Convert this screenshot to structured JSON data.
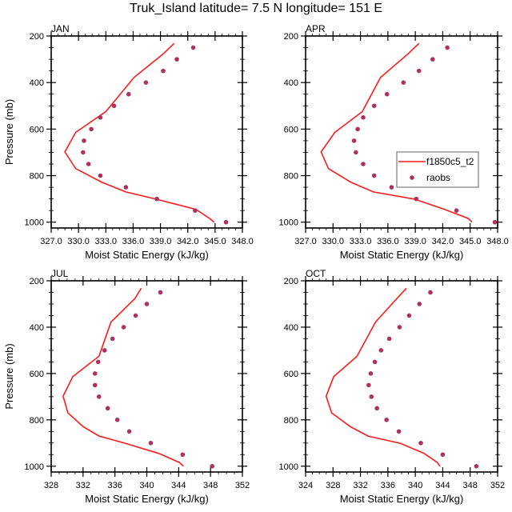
{
  "title": "Truk_Island  latitude= 7.5 N longitude= 151 E",
  "colors": {
    "model_line": "#ff1a1a",
    "raobs_marker": "#b03060",
    "frame": "#000000",
    "legend_border": "#666666"
  },
  "legend": [
    {
      "label": "f1850c5_t2",
      "kind": "line"
    },
    {
      "label": "raobs",
      "kind": "marker"
    }
  ],
  "chart_data": [
    {
      "type": "line",
      "panel": "JAN",
      "title": "JAN",
      "xlabel": "Moist Static Energy (kJ/kg)",
      "ylabel": "Pressure (mb)",
      "xlim": [
        327,
        348
      ],
      "ylim": [
        200,
        1025
      ],
      "y_reversed": true,
      "xticks": [
        327,
        330,
        333,
        336,
        339,
        342,
        345,
        348
      ],
      "xtick_labels": [
        "327.0",
        "330.0",
        "333.0",
        "336.0",
        "339.0",
        "342.0",
        "345.0",
        "348.0"
      ],
      "yticks": [
        200,
        400,
        600,
        800,
        1000
      ],
      "ytick_labels": [
        "200",
        "400",
        "600",
        "800",
        "1000"
      ],
      "legend_shown": false,
      "series": [
        {
          "name": "f1850c5_t2",
          "style": "line",
          "pressure": [
            232,
            277,
            378,
            525,
            614,
            698,
            770,
            829,
            870,
            901,
            945,
            984,
            1000
          ],
          "mse": [
            340.5,
            339.3,
            336.1,
            333.0,
            329.7,
            328.5,
            329.7,
            332.6,
            335.2,
            338.5,
            342.9,
            344.4,
            344.9
          ]
        },
        {
          "name": "raobs",
          "style": "marker",
          "pressure": [
            250,
            300,
            350,
            400,
            450,
            500,
            550,
            600,
            650,
            700,
            750,
            800,
            850,
            900,
            950,
            1000
          ],
          "mse": [
            342.6,
            340.8,
            339.3,
            337.4,
            335.5,
            333.9,
            332.4,
            331.4,
            330.6,
            330.5,
            331.1,
            332.4,
            335.2,
            338.6,
            342.8,
            346.2
          ]
        }
      ]
    },
    {
      "type": "line",
      "panel": "APR",
      "title": "APR",
      "xlabel": "Moist Static Energy (kJ/kg)",
      "ylabel": "",
      "xlim": [
        327,
        348
      ],
      "ylim": [
        200,
        1025
      ],
      "y_reversed": true,
      "xticks": [
        327,
        330,
        333,
        336,
        339,
        342,
        345,
        348
      ],
      "xtick_labels": [
        "327.0",
        "330.0",
        "333.0",
        "336.0",
        "339.0",
        "342.0",
        "345.0",
        "348.0"
      ],
      "yticks": [
        200,
        400,
        600,
        800,
        1000
      ],
      "ytick_labels": [
        "200",
        "400",
        "600",
        "800",
        "1000"
      ],
      "legend_shown": true,
      "legend_position": "center-right",
      "series": [
        {
          "name": "f1850c5_t2",
          "style": "line",
          "pressure": [
            232,
            277,
            378,
            525,
            614,
            698,
            770,
            829,
            870,
            901,
            945,
            984,
            1000
          ],
          "mse": [
            339.4,
            338.2,
            335.2,
            333.2,
            330.2,
            328.7,
            329.5,
            332.0,
            334.4,
            338.9,
            342.2,
            344.8,
            345.2
          ]
        },
        {
          "name": "raobs",
          "style": "marker",
          "pressure": [
            250,
            300,
            350,
            400,
            450,
            500,
            550,
            600,
            650,
            700,
            750,
            800,
            850,
            900,
            950,
            1000
          ],
          "mse": [
            342.5,
            340.9,
            339.4,
            337.7,
            335.9,
            334.5,
            333.3,
            332.7,
            332.3,
            332.5,
            333.3,
            334.5,
            336.4,
            339.1,
            343.5,
            347.7
          ]
        }
      ]
    },
    {
      "type": "line",
      "panel": "JUL",
      "title": "JUL",
      "xlabel": "Moist Static Energy (kJ/kg)",
      "ylabel": "Pressure (mb)",
      "xlim": [
        328,
        352
      ],
      "ylim": [
        200,
        1025
      ],
      "y_reversed": true,
      "xticks": [
        328,
        332,
        336,
        340,
        344,
        348,
        352
      ],
      "xtick_labels": [
        "328",
        "332",
        "336",
        "340",
        "344",
        "348",
        "352"
      ],
      "yticks": [
        200,
        400,
        600,
        800,
        1000
      ],
      "ytick_labels": [
        "200",
        "400",
        "600",
        "800",
        "1000"
      ],
      "legend_shown": false,
      "series": [
        {
          "name": "f1850c5_t2",
          "style": "line",
          "pressure": [
            232,
            277,
            378,
            525,
            614,
            698,
            770,
            829,
            870,
            901,
            945,
            984,
            1000
          ],
          "mse": [
            339.3,
            338.5,
            335.5,
            334.0,
            330.7,
            329.5,
            330.1,
            332.0,
            334.0,
            337.3,
            341.5,
            344.1,
            344.6
          ]
        },
        {
          "name": "raobs",
          "style": "marker",
          "pressure": [
            250,
            300,
            350,
            400,
            450,
            500,
            550,
            600,
            650,
            700,
            750,
            800,
            850,
            900,
            950,
            1000
          ],
          "mse": [
            341.7,
            340.0,
            338.6,
            337.1,
            335.7,
            334.7,
            333.9,
            333.5,
            333.5,
            334.0,
            335.1,
            336.3,
            337.8,
            340.5,
            344.5,
            348.2
          ]
        }
      ]
    },
    {
      "type": "line",
      "panel": "OCT",
      "title": "OCT",
      "xlabel": "Moist Static Energy (kJ/kg)",
      "ylabel": "",
      "xlim": [
        324,
        352
      ],
      "ylim": [
        200,
        1025
      ],
      "y_reversed": true,
      "xticks": [
        324,
        328,
        332,
        336,
        340,
        344,
        348,
        352
      ],
      "xtick_labels": [
        "324",
        "328",
        "332",
        "336",
        "340",
        "344",
        "348",
        "352"
      ],
      "yticks": [
        200,
        400,
        600,
        800,
        1000
      ],
      "ytick_labels": [
        "200",
        "400",
        "600",
        "800",
        "1000"
      ],
      "legend_shown": false,
      "series": [
        {
          "name": "f1850c5_t2",
          "style": "line",
          "pressure": [
            232,
            277,
            378,
            525,
            614,
            698,
            770,
            829,
            870,
            901,
            945,
            984,
            1000
          ],
          "mse": [
            338.7,
            337.3,
            334.2,
            331.5,
            328.1,
            327.0,
            327.8,
            330.5,
            333.1,
            337.8,
            341.3,
            343.2,
            343.6
          ]
        },
        {
          "name": "raobs",
          "style": "marker",
          "pressure": [
            250,
            300,
            350,
            400,
            450,
            500,
            550,
            600,
            650,
            700,
            750,
            800,
            850,
            900,
            950,
            1000
          ],
          "mse": [
            342.2,
            340.6,
            339.1,
            337.7,
            336.2,
            335.0,
            334.1,
            333.5,
            333.2,
            333.6,
            334.4,
            335.8,
            337.6,
            340.8,
            344.0,
            348.9
          ]
        }
      ]
    }
  ]
}
